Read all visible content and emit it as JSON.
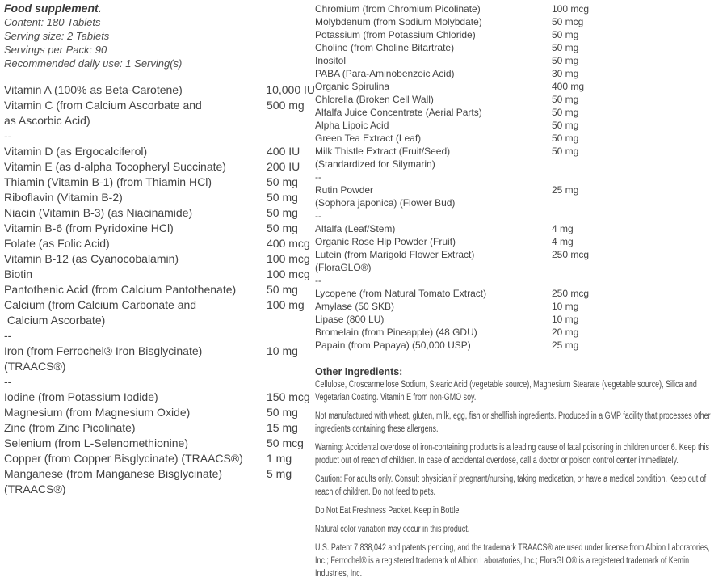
{
  "product": {
    "title": "Food supplement.",
    "meta": [
      "Content: 180 Tablets",
      "Serving size: 2 Tablets",
      "Servings per Pack: 90",
      "Recommended daily use: 1 Serving(s)"
    ]
  },
  "left_column": [
    {
      "lines": [
        "Vitamin A (100% as Beta-Carotene)"
      ],
      "amount": "10,000 IU"
    },
    {
      "lines": [
        "Vitamin C (from Calcium Ascorbate and",
        "as Ascorbic Acid)"
      ],
      "amount": "500 mg"
    },
    {
      "lines": [
        "--"
      ],
      "amount": ""
    },
    {
      "lines": [
        "Vitamin D (as Ergocalciferol)"
      ],
      "amount": "400 IU"
    },
    {
      "lines": [
        "Vitamin E (as d-alpha Tocopheryl Succinate)"
      ],
      "amount": "200 IU"
    },
    {
      "lines": [
        "Thiamin (Vitamin B-1) (from Thiamin HCl)"
      ],
      "amount": "50 mg"
    },
    {
      "lines": [
        "Riboflavin (Vitamin B-2)"
      ],
      "amount": "50 mg"
    },
    {
      "lines": [
        "Niacin (Vitamin B-3) (as Niacinamide)"
      ],
      "amount": "50 mg"
    },
    {
      "lines": [
        "Vitamin B-6 (from Pyridoxine HCl)"
      ],
      "amount": "50 mg"
    },
    {
      "lines": [
        "Folate (as Folic Acid)"
      ],
      "amount": "400 mcg"
    },
    {
      "lines": [
        "Vitamin B-12 (as Cyanocobalamin)"
      ],
      "amount": "100 mcg"
    },
    {
      "lines": [
        "Biotin"
      ],
      "amount": "100 mcg"
    },
    {
      "lines": [
        "Pantothenic Acid (from Calcium Pantothenate)"
      ],
      "amount": "50 mg"
    },
    {
      "lines": [
        "Calcium (from Calcium Carbonate and",
        " Calcium Ascorbate)"
      ],
      "amount": "100 mg"
    },
    {
      "lines": [
        "--"
      ],
      "amount": ""
    },
    {
      "lines": [
        "Iron (from Ferrochel® Iron Bisglycinate)",
        "(TRAACS®)"
      ],
      "amount": "10 mg"
    },
    {
      "lines": [
        "--"
      ],
      "amount": ""
    },
    {
      "lines": [
        "Iodine (from Potassium Iodide)"
      ],
      "amount": "150 mcg"
    },
    {
      "lines": [
        "Magnesium (from Magnesium Oxide)"
      ],
      "amount": "50 mg"
    },
    {
      "lines": [
        "Zinc (from Zinc Picolinate)"
      ],
      "amount": "15 mg"
    },
    {
      "lines": [
        "Selenium (from L-Selenomethionine)"
      ],
      "amount": "50 mcg"
    },
    {
      "lines": [
        "Copper (from Copper Bisglycinate) (TRAACS®)"
      ],
      "amount": "1 mg"
    },
    {
      "lines": [
        "Manganese (from Manganese Bisglycinate)",
        "(TRAACS®)"
      ],
      "amount": "5 mg"
    }
  ],
  "right_column": [
    {
      "lines": [
        "Chromium (from Chromium Picolinate)"
      ],
      "amount": "100 mcg"
    },
    {
      "lines": [
        "Molybdenum (from Sodium Molybdate)"
      ],
      "amount": "50 mcg"
    },
    {
      "lines": [
        "Potassium (from Potassium Chloride)"
      ],
      "amount": "50 mg"
    },
    {
      "lines": [
        "Choline (from Choline Bitartrate)"
      ],
      "amount": "50 mg"
    },
    {
      "lines": [
        "Inositol"
      ],
      "amount": "50 mg"
    },
    {
      "lines": [
        "PABA (Para-Aminobenzoic Acid)"
      ],
      "amount": "30 mg"
    },
    {
      "lines": [
        "Organic Spirulina"
      ],
      "amount": "400 mg"
    },
    {
      "lines": [
        "Chlorella (Broken Cell Wall)"
      ],
      "amount": "50 mg"
    },
    {
      "lines": [
        "Alfalfa Juice Concentrate (Aerial Parts)"
      ],
      "amount": "50 mg"
    },
    {
      "lines": [
        "Alpha Lipoic Acid"
      ],
      "amount": "50 mg"
    },
    {
      "lines": [
        "Green Tea Extract (Leaf)"
      ],
      "amount": "50 mg"
    },
    {
      "lines": [
        "Milk Thistle Extract (Fruit/Seed)",
        "(Standardized for Silymarin)"
      ],
      "amount": "50 mg"
    },
    {
      "lines": [
        "--"
      ],
      "amount": ""
    },
    {
      "lines": [
        "Rutin Powder",
        "(Sophora japonica) (Flower Bud)"
      ],
      "amount": "25 mg"
    },
    {
      "lines": [
        "--"
      ],
      "amount": ""
    },
    {
      "lines": [
        "Alfalfa (Leaf/Stem)"
      ],
      "amount": "4 mg"
    },
    {
      "lines": [
        "Organic Rose Hip Powder (Fruit)"
      ],
      "amount": "4 mg"
    },
    {
      "lines": [
        "Lutein (from Marigold Flower Extract)",
        "(FloraGLO®)"
      ],
      "amount": "250 mcg"
    },
    {
      "lines": [
        "--"
      ],
      "amount": ""
    },
    {
      "lines": [
        "Lycopene (from Natural Tomato Extract)"
      ],
      "amount": "250 mcg"
    },
    {
      "lines": [
        "Amylase (50 SKB)"
      ],
      "amount": "10 mg"
    },
    {
      "lines": [
        "Lipase (800 LU)"
      ],
      "amount": "10 mg"
    },
    {
      "lines": [
        "Bromelain (from Pineapple) (48 GDU)"
      ],
      "amount": "20 mg"
    },
    {
      "lines": [
        "Papain (from Papaya) (50,000 USP)"
      ],
      "amount": "25 mg"
    }
  ],
  "notes": {
    "heading": "Other Ingredients:",
    "paragraphs": [
      "Cellulose, Croscarmellose Sodium, Stearic Acid (vegetable source), Magnesium Stearate (vegetable source), Silica and Vegetarian Coating. Vitamin E from non-GMO soy.",
      "Not manufactured with wheat, gluten, milk, egg, fish or shellfish ingredients. Produced in a GMP facility that processes other ingredients containing these allergens.",
      "Warning: Accidental overdose of iron-containing products is a leading cause of fatal poisoning in children under 6. Keep this product out of reach of children. In case of accidental overdose, call a doctor or poison control center immediately.",
      "Caution: For adults only. Consult physician if pregnant/nursing, taking medication, or have a medical condition. Keep out of reach of children. Do not feed to pets.",
      "Do Not Eat Freshness Packet. Keep in Bottle.",
      "Natural color variation may occur in this product.",
      "U.S. Patent 7,838,042 and patents pending, and the trademark TRAACS® are used under license from Albion Laboratories, Inc.; Ferrochel® is a registered trademark of Albion Laboratories, Inc.; FloraGLO® is a registered trademark of Kemin Industries, Inc."
    ]
  },
  "colors": {
    "background": "#ffffff",
    "text_dark": "#3a3a3a",
    "text_body": "#434343",
    "text_paragraph": "#4a4a4a"
  }
}
